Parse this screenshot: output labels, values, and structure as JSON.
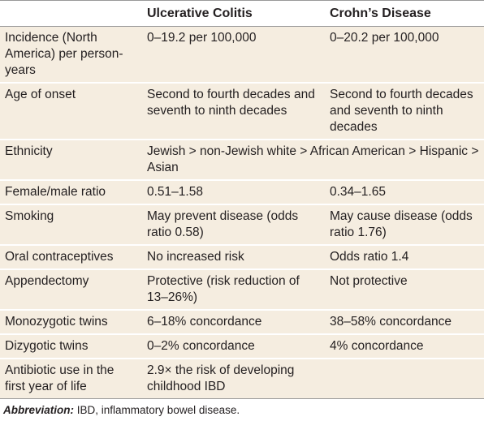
{
  "table": {
    "header": [
      "Ulcerative Colitis",
      "Crohn’s Disease"
    ],
    "rows": [
      [
        "Incidence (North America) per person-years",
        "0–19.2 per 100,000",
        "0–20.2 per 100,000"
      ],
      [
        "Age of onset",
        "Second to fourth decades and seventh to ninth decades",
        "Second to fourth decades and seventh to ninth decades"
      ],
      [
        "Ethnicity",
        "Jewish > non-Jewish white > African American > Hispanic > Asian"
      ],
      [
        "Female/male ratio",
        "0.51–1.58",
        "0.34–1.65"
      ],
      [
        "Smoking",
        "May prevent disease (odds ratio 0.58)",
        "May cause disease (odds ratio 1.76)"
      ],
      [
        "Oral contraceptives",
        "No increased risk",
        "Odds ratio 1.4"
      ],
      [
        "Appendectomy",
        "Protective (risk reduction of 13–26%)",
        "Not protective"
      ],
      [
        "Monozygotic twins",
        "6–18% concordance",
        "38–58% concordance"
      ],
      [
        "Dizygotic twins",
        "0–2% concordance",
        "4% concordance"
      ],
      [
        "Antibiotic use in the first year of life",
        "2.9× the risk of developing childhood IBD"
      ]
    ]
  },
  "footnote": {
    "label": "Abbreviation:",
    "text": "IBD, inflammatory bowel disease."
  }
}
